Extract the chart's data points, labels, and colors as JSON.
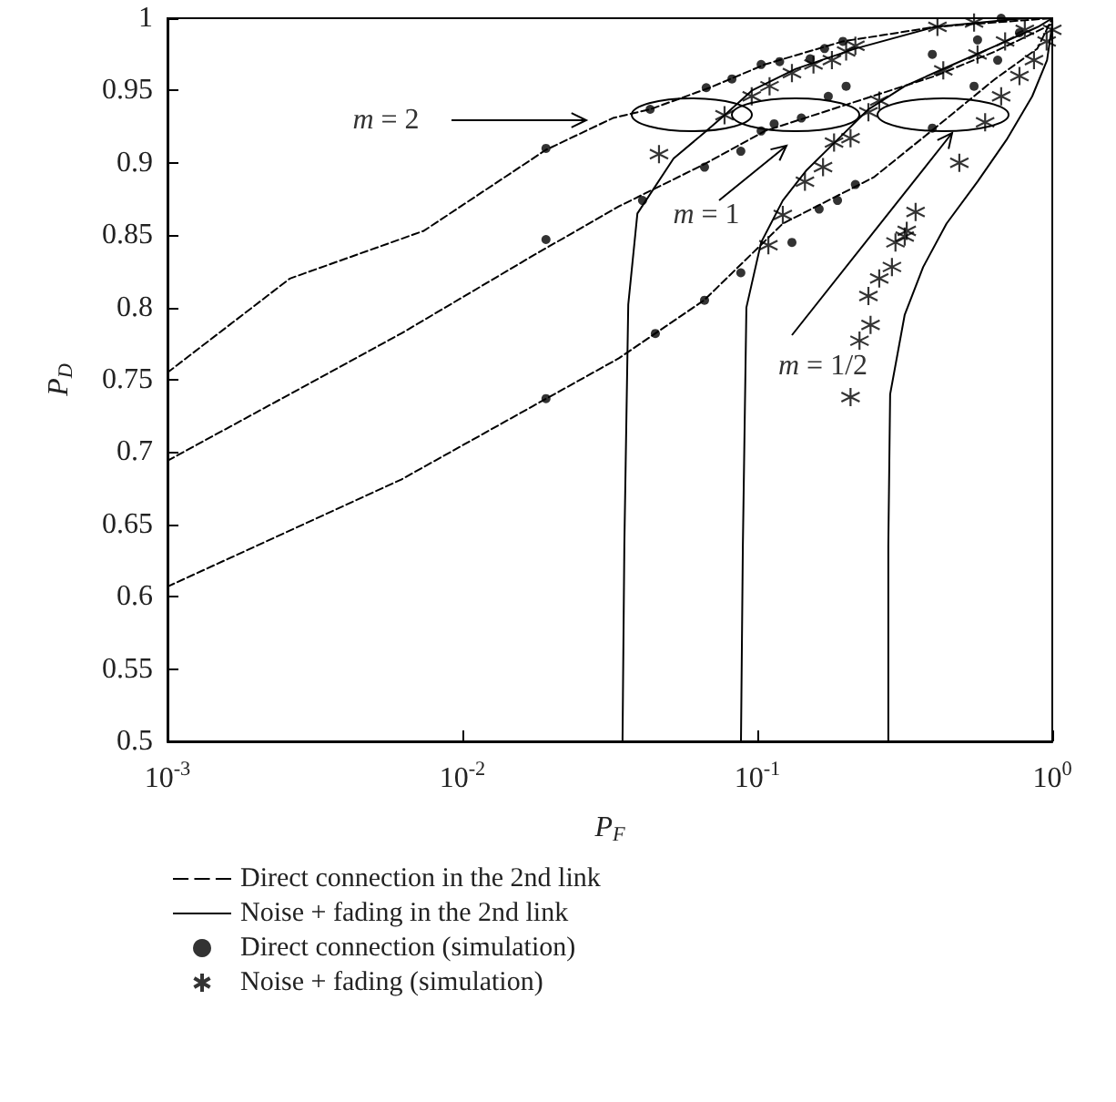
{
  "chart_data": {
    "type": "line",
    "xlabel": "P$_{F}$",
    "ylabel": "P$_{D}$",
    "log": "x",
    "xlim": [
      0.001,
      1
    ],
    "ylim": [
      0.5,
      1
    ],
    "xticks": [
      {
        "value": 0.001,
        "label": "10$^{-3}$"
      },
      {
        "value": 0.01,
        "label": "10$^{-2}$"
      },
      {
        "value": 0.1,
        "label": "10$^{-1}$"
      },
      {
        "value": 1,
        "label": "10$^{0}$"
      }
    ],
    "yticks": [
      0.5,
      0.55,
      0.6,
      0.65,
      0.7,
      0.75,
      0.8,
      0.85,
      0.9,
      0.95,
      1
    ],
    "grid": false,
    "legend": "bottom",
    "annotations": [
      "m = 2",
      "m = 1",
      "m = 1/2"
    ],
    "series": [
      {
        "name": "Direct connection in the 2nd link",
        "line_style": "dashed",
        "marker": "none",
        "color": "#000000",
        "x": [
          0.001,
          0.0026,
          0.0074,
          0.0192,
          0.0324,
          0.0433,
          0.069,
          0.106,
          0.195,
          0.4,
          1
        ],
        "values": [
          0.755,
          0.82,
          0.853,
          0.909,
          0.931,
          0.937,
          0.952,
          0.968,
          0.984,
          0.994,
          1
        ]
      },
      {
        "line_style": "dashed",
        "marker": "none",
        "color": "#000000",
        "x": [
          0.001,
          0.0062,
          0.0174,
          0.034,
          0.066,
          0.106,
          0.179,
          0.4,
          0.64,
          1
        ],
        "values": [
          0.694,
          0.782,
          0.836,
          0.87,
          0.899,
          0.922,
          0.937,
          0.96,
          0.977,
          0.996
        ]
      },
      {
        "line_style": "dashed",
        "marker": "none",
        "color": "#000000",
        "x": [
          0.001,
          0.0062,
          0.0174,
          0.034,
          0.066,
          0.122,
          0.248,
          0.4,
          0.64,
          0.89,
          1
        ],
        "values": [
          0.607,
          0.681,
          0.732,
          0.765,
          0.805,
          0.858,
          0.89,
          0.924,
          0.958,
          0.979,
          1
        ]
      },
      {
        "name": "Noise + fading in the 2nd link",
        "line_style": "solid",
        "marker": "none",
        "color": "#000000",
        "x": [
          0.0349,
          0.0354,
          0.0365,
          0.0392,
          0.052,
          0.0662,
          0.0774,
          0.0958,
          0.135,
          0.215,
          0.4,
          0.81,
          1
        ],
        "values": [
          0.5,
          0.635,
          0.802,
          0.865,
          0.903,
          0.921,
          0.933,
          0.95,
          0.965,
          0.979,
          0.994,
          1,
          1
        ]
      },
      {
        "line_style": "solid",
        "marker": "none",
        "color": "#000000",
        "x": [
          0.088,
          0.0893,
          0.0918,
          0.103,
          0.122,
          0.147,
          0.187,
          0.238,
          0.316,
          0.438,
          0.645,
          0.894,
          1
        ],
        "values": [
          0.5,
          0.635,
          0.8,
          0.845,
          0.874,
          0.895,
          0.916,
          0.937,
          0.953,
          0.966,
          0.981,
          0.994,
          1
        ]
      },
      {
        "line_style": "solid",
        "marker": "none",
        "color": "#000000",
        "x": [
          0.278,
          0.278,
          0.282,
          0.316,
          0.365,
          0.438,
          0.558,
          0.7,
          0.855,
          0.96,
          1
        ],
        "values": [
          0.5,
          0.635,
          0.74,
          0.795,
          0.828,
          0.858,
          0.887,
          0.916,
          0.946,
          0.971,
          0.996
        ]
      },
      {
        "name": "Direct connection (simulation)",
        "type": "scatter",
        "marker": "circle",
        "color": "#000000",
        "x": [
          0.0192,
          0.0192,
          0.0192,
          0.0433,
          0.0408,
          0.0451,
          0.0662,
          0.0662,
          0.0879,
          0.103,
          0.114,
          0.141,
          0.0879,
          0.131,
          0.162,
          0.187,
          0.215,
          0.0671,
          0.082,
          0.103,
          0.119,
          0.151,
          0.169,
          0.195,
          0.174,
          0.2,
          0.392,
          0.392,
          0.543,
          0.558,
          0.653,
          0.671,
          0.774
        ],
        "values": [
          0.91,
          0.847,
          0.737,
          0.937,
          0.874,
          0.782,
          0.897,
          0.805,
          0.908,
          0.922,
          0.927,
          0.931,
          0.824,
          0.845,
          0.868,
          0.874,
          0.885,
          0.952,
          0.958,
          0.968,
          0.97,
          0.972,
          0.979,
          0.984,
          0.946,
          0.953,
          0.975,
          0.924,
          0.953,
          0.985,
          0.971,
          1.0,
          0.99
        ]
      },
      {
        "name": "Noise + fading (simulation)",
        "type": "scatter",
        "marker": "cross",
        "color": "#000000",
        "x": [
          0.0464,
          0.0774,
          0.0957,
          0.11,
          0.131,
          0.155,
          0.179,
          0.2,
          0.215,
          0.408,
          0.543,
          0.109,
          0.122,
          0.145,
          0.167,
          0.182,
          0.207,
          0.238,
          0.259,
          0.427,
          0.558,
          0.692,
          0.807,
          0.207,
          0.222,
          0.242,
          0.238,
          0.259,
          0.286,
          0.294,
          0.316,
          0.321,
          0.344,
          0.484,
          0.592,
          0.671,
          0.774,
          0.867,
          0.957,
          1
        ],
        "values": [
          0.906,
          0.933,
          0.946,
          0.953,
          0.962,
          0.968,
          0.971,
          0.977,
          0.981,
          0.994,
          0.997,
          0.843,
          0.864,
          0.887,
          0.897,
          0.914,
          0.917,
          0.935,
          0.943,
          0.964,
          0.975,
          0.984,
          0.992,
          0.738,
          0.777,
          0.788,
          0.808,
          0.82,
          0.828,
          0.845,
          0.849,
          0.853,
          0.866,
          0.9,
          0.928,
          0.946,
          0.96,
          0.971,
          0.984,
          0.992
        ]
      }
    ]
  }
}
